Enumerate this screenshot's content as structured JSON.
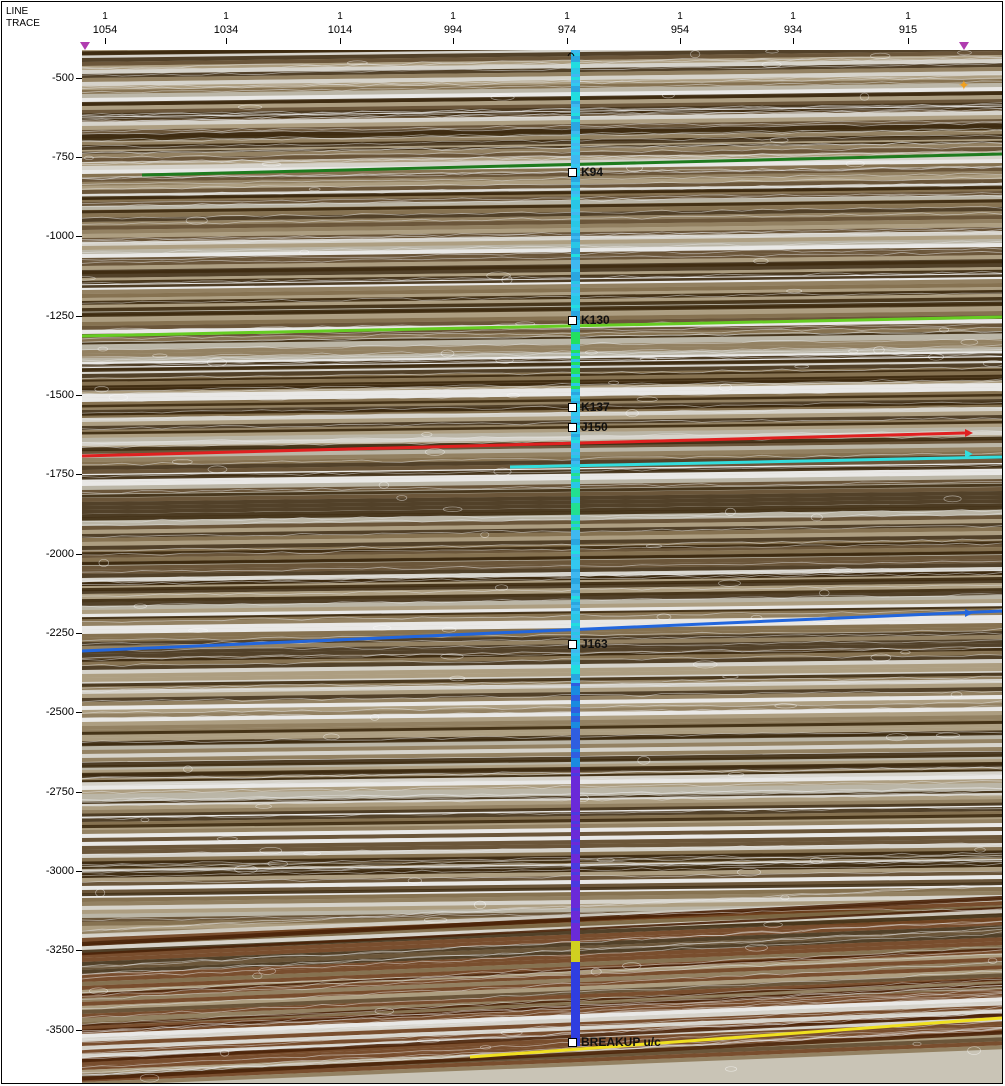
{
  "header": {
    "line_label": "LINE",
    "trace_label": "TRACE",
    "ticks": [
      {
        "line": "1",
        "trace": "1054"
      },
      {
        "line": "1",
        "trace": "1034"
      },
      {
        "line": "1",
        "trace": "1014"
      },
      {
        "line": "1",
        "trace": "994"
      },
      {
        "line": "1",
        "trace": "974"
      },
      {
        "line": "1",
        "trace": "954"
      },
      {
        "line": "1",
        "trace": "934"
      },
      {
        "line": "1",
        "trace": "915"
      }
    ]
  },
  "depth_axis": {
    "labels": [
      "-500",
      "-750",
      "-1000",
      "-1250",
      "-1500",
      "-1750",
      "-2000",
      "-2250",
      "-2500",
      "-2750",
      "-3000",
      "-3250",
      "-3500"
    ]
  },
  "well_tops": [
    {
      "name": "K94",
      "depth": -800
    },
    {
      "name": "K130",
      "depth": -1265
    },
    {
      "name": "K137",
      "depth": -1535
    },
    {
      "name": "J150",
      "depth": -1600
    },
    {
      "name": "J163",
      "depth": -2285
    },
    {
      "name": "BREAKUP u/c",
      "depth": -3540
    }
  ],
  "horizons": [
    {
      "color": "#1e7b1e"
    },
    {
      "color": "#66cc22"
    },
    {
      "color": "#e02020"
    },
    {
      "color": "#33dddd"
    },
    {
      "color": "#2266dd"
    },
    {
      "color": "#f0e020"
    }
  ],
  "colors": {
    "seismic_dark": "#3d2a10",
    "seismic_light": "#e8e8e8",
    "well_log_main": "#29c6e6",
    "well_log_deep": "#6a2ad8",
    "marker": "#b03cb0"
  }
}
